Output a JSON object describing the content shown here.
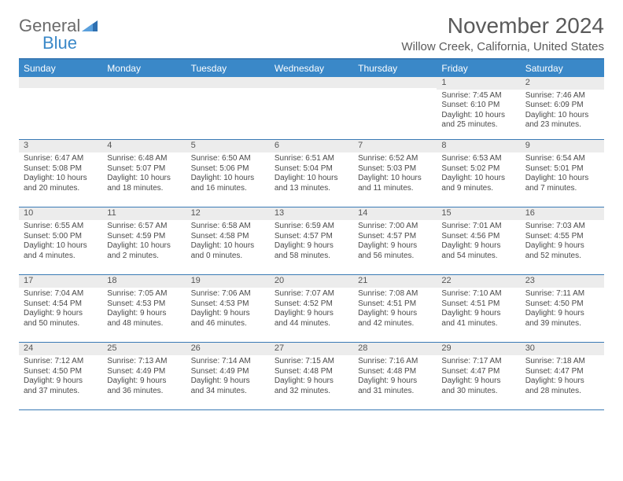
{
  "logo": {
    "text1": "General",
    "text2": "Blue"
  },
  "title": {
    "month": "November 2024",
    "location": "Willow Creek, California, United States"
  },
  "colors": {
    "header_bg": "#3a88c8",
    "header_text": "#ffffff",
    "rule": "#3a7ab5",
    "daynum_bg": "#ececec",
    "body_text": "#4a4a4a",
    "title_text": "#5a5a5a"
  },
  "weekdays": [
    "Sunday",
    "Monday",
    "Tuesday",
    "Wednesday",
    "Thursday",
    "Friday",
    "Saturday"
  ],
  "weeks": [
    [
      {
        "n": "",
        "sr": "",
        "ss": "",
        "dl": ""
      },
      {
        "n": "",
        "sr": "",
        "ss": "",
        "dl": ""
      },
      {
        "n": "",
        "sr": "",
        "ss": "",
        "dl": ""
      },
      {
        "n": "",
        "sr": "",
        "ss": "",
        "dl": ""
      },
      {
        "n": "",
        "sr": "",
        "ss": "",
        "dl": ""
      },
      {
        "n": "1",
        "sr": "Sunrise: 7:45 AM",
        "ss": "Sunset: 6:10 PM",
        "dl": "Daylight: 10 hours and 25 minutes."
      },
      {
        "n": "2",
        "sr": "Sunrise: 7:46 AM",
        "ss": "Sunset: 6:09 PM",
        "dl": "Daylight: 10 hours and 23 minutes."
      }
    ],
    [
      {
        "n": "3",
        "sr": "Sunrise: 6:47 AM",
        "ss": "Sunset: 5:08 PM",
        "dl": "Daylight: 10 hours and 20 minutes."
      },
      {
        "n": "4",
        "sr": "Sunrise: 6:48 AM",
        "ss": "Sunset: 5:07 PM",
        "dl": "Daylight: 10 hours and 18 minutes."
      },
      {
        "n": "5",
        "sr": "Sunrise: 6:50 AM",
        "ss": "Sunset: 5:06 PM",
        "dl": "Daylight: 10 hours and 16 minutes."
      },
      {
        "n": "6",
        "sr": "Sunrise: 6:51 AM",
        "ss": "Sunset: 5:04 PM",
        "dl": "Daylight: 10 hours and 13 minutes."
      },
      {
        "n": "7",
        "sr": "Sunrise: 6:52 AM",
        "ss": "Sunset: 5:03 PM",
        "dl": "Daylight: 10 hours and 11 minutes."
      },
      {
        "n": "8",
        "sr": "Sunrise: 6:53 AM",
        "ss": "Sunset: 5:02 PM",
        "dl": "Daylight: 10 hours and 9 minutes."
      },
      {
        "n": "9",
        "sr": "Sunrise: 6:54 AM",
        "ss": "Sunset: 5:01 PM",
        "dl": "Daylight: 10 hours and 7 minutes."
      }
    ],
    [
      {
        "n": "10",
        "sr": "Sunrise: 6:55 AM",
        "ss": "Sunset: 5:00 PM",
        "dl": "Daylight: 10 hours and 4 minutes."
      },
      {
        "n": "11",
        "sr": "Sunrise: 6:57 AM",
        "ss": "Sunset: 4:59 PM",
        "dl": "Daylight: 10 hours and 2 minutes."
      },
      {
        "n": "12",
        "sr": "Sunrise: 6:58 AM",
        "ss": "Sunset: 4:58 PM",
        "dl": "Daylight: 10 hours and 0 minutes."
      },
      {
        "n": "13",
        "sr": "Sunrise: 6:59 AM",
        "ss": "Sunset: 4:57 PM",
        "dl": "Daylight: 9 hours and 58 minutes."
      },
      {
        "n": "14",
        "sr": "Sunrise: 7:00 AM",
        "ss": "Sunset: 4:57 PM",
        "dl": "Daylight: 9 hours and 56 minutes."
      },
      {
        "n": "15",
        "sr": "Sunrise: 7:01 AM",
        "ss": "Sunset: 4:56 PM",
        "dl": "Daylight: 9 hours and 54 minutes."
      },
      {
        "n": "16",
        "sr": "Sunrise: 7:03 AM",
        "ss": "Sunset: 4:55 PM",
        "dl": "Daylight: 9 hours and 52 minutes."
      }
    ],
    [
      {
        "n": "17",
        "sr": "Sunrise: 7:04 AM",
        "ss": "Sunset: 4:54 PM",
        "dl": "Daylight: 9 hours and 50 minutes."
      },
      {
        "n": "18",
        "sr": "Sunrise: 7:05 AM",
        "ss": "Sunset: 4:53 PM",
        "dl": "Daylight: 9 hours and 48 minutes."
      },
      {
        "n": "19",
        "sr": "Sunrise: 7:06 AM",
        "ss": "Sunset: 4:53 PM",
        "dl": "Daylight: 9 hours and 46 minutes."
      },
      {
        "n": "20",
        "sr": "Sunrise: 7:07 AM",
        "ss": "Sunset: 4:52 PM",
        "dl": "Daylight: 9 hours and 44 minutes."
      },
      {
        "n": "21",
        "sr": "Sunrise: 7:08 AM",
        "ss": "Sunset: 4:51 PM",
        "dl": "Daylight: 9 hours and 42 minutes."
      },
      {
        "n": "22",
        "sr": "Sunrise: 7:10 AM",
        "ss": "Sunset: 4:51 PM",
        "dl": "Daylight: 9 hours and 41 minutes."
      },
      {
        "n": "23",
        "sr": "Sunrise: 7:11 AM",
        "ss": "Sunset: 4:50 PM",
        "dl": "Daylight: 9 hours and 39 minutes."
      }
    ],
    [
      {
        "n": "24",
        "sr": "Sunrise: 7:12 AM",
        "ss": "Sunset: 4:50 PM",
        "dl": "Daylight: 9 hours and 37 minutes."
      },
      {
        "n": "25",
        "sr": "Sunrise: 7:13 AM",
        "ss": "Sunset: 4:49 PM",
        "dl": "Daylight: 9 hours and 36 minutes."
      },
      {
        "n": "26",
        "sr": "Sunrise: 7:14 AM",
        "ss": "Sunset: 4:49 PM",
        "dl": "Daylight: 9 hours and 34 minutes."
      },
      {
        "n": "27",
        "sr": "Sunrise: 7:15 AM",
        "ss": "Sunset: 4:48 PM",
        "dl": "Daylight: 9 hours and 32 minutes."
      },
      {
        "n": "28",
        "sr": "Sunrise: 7:16 AM",
        "ss": "Sunset: 4:48 PM",
        "dl": "Daylight: 9 hours and 31 minutes."
      },
      {
        "n": "29",
        "sr": "Sunrise: 7:17 AM",
        "ss": "Sunset: 4:47 PM",
        "dl": "Daylight: 9 hours and 30 minutes."
      },
      {
        "n": "30",
        "sr": "Sunrise: 7:18 AM",
        "ss": "Sunset: 4:47 PM",
        "dl": "Daylight: 9 hours and 28 minutes."
      }
    ]
  ]
}
